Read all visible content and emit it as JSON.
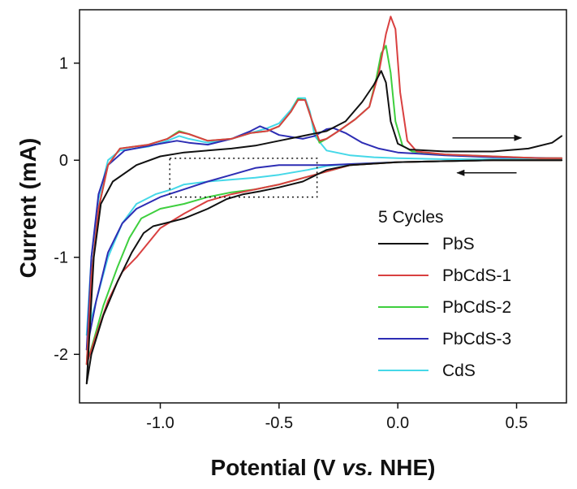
{
  "chart_data": {
    "type": "line",
    "title": "",
    "xlabel": {
      "prefix": "Potential (V ",
      "italic": "vs.",
      "suffix": " NHE)"
    },
    "ylabel": "Current (mA)",
    "xlim": [
      -1.34,
      0.71
    ],
    "ylim": [
      -2.5,
      1.55
    ],
    "xticks": [
      {
        "value": -1.0,
        "label": "-1.0"
      },
      {
        "value": -0.5,
        "label": "-0.5"
      },
      {
        "value": 0.0,
        "label": "0.0"
      },
      {
        "value": 0.5,
        "label": "0.5"
      }
    ],
    "yticks": [
      {
        "value": -2,
        "label": "-2"
      },
      {
        "value": -1,
        "label": "-1"
      },
      {
        "value": 0,
        "label": "0"
      },
      {
        "value": 1,
        "label": "1"
      }
    ],
    "grid": false,
    "legend": {
      "title": "5 Cycles",
      "position": "bottom-right"
    },
    "annotations": [
      {
        "type": "arrow",
        "direction": "right",
        "from": [
          0.23,
          0.23
        ],
        "to": [
          0.52,
          0.23
        ]
      },
      {
        "type": "arrow",
        "direction": "left",
        "from": [
          0.5,
          -0.13
        ],
        "to": [
          0.25,
          -0.13
        ]
      },
      {
        "type": "dashed-box",
        "x": [
          -0.96,
          -0.34
        ],
        "y": [
          -0.38,
          0.02
        ]
      }
    ],
    "series": [
      {
        "name": "PbS",
        "color": "#111111",
        "forward": [
          [
            -1.31,
            -2.3
          ],
          [
            -1.28,
            -1.0
          ],
          [
            -1.25,
            -0.45
          ],
          [
            -1.2,
            -0.22
          ],
          [
            -1.1,
            -0.05
          ],
          [
            -1.0,
            0.04
          ],
          [
            -0.9,
            0.08
          ],
          [
            -0.8,
            0.1
          ],
          [
            -0.7,
            0.12
          ],
          [
            -0.6,
            0.15
          ],
          [
            -0.5,
            0.2
          ],
          [
            -0.4,
            0.25
          ],
          [
            -0.3,
            0.3
          ],
          [
            -0.22,
            0.4
          ],
          [
            -0.15,
            0.6
          ],
          [
            -0.1,
            0.78
          ],
          [
            -0.07,
            0.92
          ],
          [
            -0.05,
            0.8
          ],
          [
            -0.03,
            0.4
          ],
          [
            0.0,
            0.17
          ],
          [
            0.05,
            0.11
          ],
          [
            0.2,
            0.09
          ],
          [
            0.4,
            0.09
          ],
          [
            0.55,
            0.12
          ],
          [
            0.65,
            0.18
          ],
          [
            0.69,
            0.25
          ]
        ],
        "reverse": [
          [
            0.69,
            0.0
          ],
          [
            0.4,
            0.0
          ],
          [
            0.2,
            -0.01
          ],
          [
            0.0,
            -0.02
          ],
          [
            -0.2,
            -0.05
          ],
          [
            -0.3,
            -0.1
          ],
          [
            -0.4,
            -0.22
          ],
          [
            -0.5,
            -0.28
          ],
          [
            -0.58,
            -0.32
          ],
          [
            -0.65,
            -0.35
          ],
          [
            -0.72,
            -0.4
          ],
          [
            -0.8,
            -0.5
          ],
          [
            -0.9,
            -0.6
          ],
          [
            -0.98,
            -0.65
          ],
          [
            -1.03,
            -0.68
          ],
          [
            -1.07,
            -0.75
          ],
          [
            -1.12,
            -0.95
          ],
          [
            -1.18,
            -1.25
          ],
          [
            -1.24,
            -1.6
          ],
          [
            -1.29,
            -2.0
          ],
          [
            -1.31,
            -2.3
          ]
        ]
      },
      {
        "name": "PbCdS-1",
        "color": "#d94040",
        "forward": [
          [
            -1.31,
            -2.1
          ],
          [
            -1.29,
            -1.2
          ],
          [
            -1.26,
            -0.5
          ],
          [
            -1.22,
            -0.05
          ],
          [
            -1.17,
            0.12
          ],
          [
            -1.05,
            0.16
          ],
          [
            -0.97,
            0.22
          ],
          [
            -0.92,
            0.29
          ],
          [
            -0.88,
            0.27
          ],
          [
            -0.8,
            0.2
          ],
          [
            -0.7,
            0.22
          ],
          [
            -0.62,
            0.28
          ],
          [
            -0.55,
            0.3
          ],
          [
            -0.5,
            0.35
          ],
          [
            -0.45,
            0.5
          ],
          [
            -0.42,
            0.62
          ],
          [
            -0.39,
            0.62
          ],
          [
            -0.36,
            0.4
          ],
          [
            -0.33,
            0.2
          ],
          [
            -0.3,
            0.22
          ],
          [
            -0.25,
            0.3
          ],
          [
            -0.18,
            0.42
          ],
          [
            -0.12,
            0.55
          ],
          [
            -0.08,
            0.9
          ],
          [
            -0.05,
            1.3
          ],
          [
            -0.03,
            1.48
          ],
          [
            -0.01,
            1.35
          ],
          [
            0.01,
            0.7
          ],
          [
            0.04,
            0.2
          ],
          [
            0.08,
            0.09
          ],
          [
            0.2,
            0.06
          ],
          [
            0.4,
            0.04
          ],
          [
            0.6,
            0.02
          ],
          [
            0.69,
            0.02
          ]
        ],
        "reverse": [
          [
            0.69,
            0.0
          ],
          [
            0.4,
            0.0
          ],
          [
            0.2,
            -0.01
          ],
          [
            0.0,
            -0.02
          ],
          [
            -0.2,
            -0.05
          ],
          [
            -0.35,
            -0.15
          ],
          [
            -0.5,
            -0.25
          ],
          [
            -0.6,
            -0.3
          ],
          [
            -0.7,
            -0.35
          ],
          [
            -0.8,
            -0.42
          ],
          [
            -0.9,
            -0.55
          ],
          [
            -1.0,
            -0.7
          ],
          [
            -1.05,
            -0.85
          ],
          [
            -1.1,
            -1.0
          ],
          [
            -1.16,
            -1.15
          ],
          [
            -1.22,
            -1.45
          ],
          [
            -1.27,
            -1.8
          ],
          [
            -1.31,
            -2.1
          ]
        ]
      },
      {
        "name": "PbCdS-2",
        "color": "#3ecf3e",
        "forward": [
          [
            -1.31,
            -2.1
          ],
          [
            -1.29,
            -1.2
          ],
          [
            -1.26,
            -0.5
          ],
          [
            -1.22,
            -0.05
          ],
          [
            -1.17,
            0.12
          ],
          [
            -1.05,
            0.16
          ],
          [
            -0.97,
            0.22
          ],
          [
            -0.92,
            0.3
          ],
          [
            -0.88,
            0.27
          ],
          [
            -0.8,
            0.2
          ],
          [
            -0.7,
            0.22
          ],
          [
            -0.62,
            0.28
          ],
          [
            -0.55,
            0.3
          ],
          [
            -0.5,
            0.35
          ],
          [
            -0.45,
            0.5
          ],
          [
            -0.42,
            0.63
          ],
          [
            -0.39,
            0.62
          ],
          [
            -0.36,
            0.4
          ],
          [
            -0.33,
            0.18
          ],
          [
            -0.3,
            0.22
          ],
          [
            -0.25,
            0.3
          ],
          [
            -0.18,
            0.42
          ],
          [
            -0.12,
            0.55
          ],
          [
            -0.09,
            0.85
          ],
          [
            -0.07,
            1.1
          ],
          [
            -0.05,
            1.18
          ],
          [
            -0.03,
            0.9
          ],
          [
            -0.01,
            0.4
          ],
          [
            0.02,
            0.15
          ],
          [
            0.06,
            0.09
          ],
          [
            0.2,
            0.06
          ],
          [
            0.4,
            0.04
          ],
          [
            0.6,
            0.02
          ],
          [
            0.69,
            0.02
          ]
        ],
        "reverse": [
          [
            0.69,
            0.0
          ],
          [
            0.4,
            0.0
          ],
          [
            0.2,
            -0.01
          ],
          [
            0.0,
            -0.02
          ],
          [
            -0.2,
            -0.05
          ],
          [
            -0.35,
            -0.15
          ],
          [
            -0.5,
            -0.25
          ],
          [
            -0.6,
            -0.3
          ],
          [
            -0.7,
            -0.33
          ],
          [
            -0.8,
            -0.38
          ],
          [
            -0.9,
            -0.45
          ],
          [
            -1.0,
            -0.5
          ],
          [
            -1.08,
            -0.6
          ],
          [
            -1.13,
            -0.8
          ],
          [
            -1.18,
            -1.1
          ],
          [
            -1.24,
            -1.5
          ],
          [
            -1.28,
            -1.85
          ],
          [
            -1.31,
            -2.1
          ]
        ]
      },
      {
        "name": "PbCdS-3",
        "color": "#2d2db4",
        "forward": [
          [
            -1.31,
            -1.95
          ],
          [
            -1.29,
            -1.0
          ],
          [
            -1.26,
            -0.35
          ],
          [
            -1.22,
            -0.05
          ],
          [
            -1.15,
            0.1
          ],
          [
            -1.0,
            0.17
          ],
          [
            -0.93,
            0.2
          ],
          [
            -0.88,
            0.18
          ],
          [
            -0.8,
            0.16
          ],
          [
            -0.7,
            0.22
          ],
          [
            -0.62,
            0.3
          ],
          [
            -0.58,
            0.35
          ],
          [
            -0.55,
            0.32
          ],
          [
            -0.5,
            0.26
          ],
          [
            -0.4,
            0.22
          ],
          [
            -0.35,
            0.25
          ],
          [
            -0.3,
            0.32
          ],
          [
            -0.27,
            0.33
          ],
          [
            -0.22,
            0.28
          ],
          [
            -0.15,
            0.18
          ],
          [
            -0.08,
            0.12
          ],
          [
            0.0,
            0.08
          ],
          [
            0.2,
            0.05
          ],
          [
            0.4,
            0.03
          ],
          [
            0.69,
            0.02
          ]
        ],
        "reverse": [
          [
            0.69,
            0.0
          ],
          [
            0.4,
            0.0
          ],
          [
            0.2,
            -0.01
          ],
          [
            0.0,
            -0.02
          ],
          [
            -0.2,
            -0.04
          ],
          [
            -0.3,
            -0.05
          ],
          [
            -0.4,
            -0.05
          ],
          [
            -0.5,
            -0.05
          ],
          [
            -0.6,
            -0.08
          ],
          [
            -0.7,
            -0.15
          ],
          [
            -0.8,
            -0.22
          ],
          [
            -0.9,
            -0.3
          ],
          [
            -1.0,
            -0.38
          ],
          [
            -1.1,
            -0.5
          ],
          [
            -1.16,
            -0.65
          ],
          [
            -1.22,
            -0.95
          ],
          [
            -1.27,
            -1.45
          ],
          [
            -1.31,
            -1.95
          ]
        ]
      },
      {
        "name": "CdS",
        "color": "#45d8e8",
        "forward": [
          [
            -1.31,
            -1.8
          ],
          [
            -1.29,
            -1.0
          ],
          [
            -1.26,
            -0.4
          ],
          [
            -1.22,
            0.0
          ],
          [
            -1.17,
            0.1
          ],
          [
            -1.05,
            0.14
          ],
          [
            -0.97,
            0.2
          ],
          [
            -0.92,
            0.25
          ],
          [
            -0.88,
            0.22
          ],
          [
            -0.8,
            0.18
          ],
          [
            -0.7,
            0.22
          ],
          [
            -0.62,
            0.28
          ],
          [
            -0.55,
            0.33
          ],
          [
            -0.5,
            0.38
          ],
          [
            -0.45,
            0.52
          ],
          [
            -0.42,
            0.64
          ],
          [
            -0.39,
            0.64
          ],
          [
            -0.37,
            0.5
          ],
          [
            -0.35,
            0.25
          ],
          [
            -0.3,
            0.1
          ],
          [
            -0.2,
            0.05
          ],
          [
            -0.1,
            0.03
          ],
          [
            0.0,
            0.02
          ],
          [
            0.2,
            0.01
          ],
          [
            0.4,
            0.01
          ],
          [
            0.69,
            0.01
          ]
        ],
        "reverse": [
          [
            0.69,
            0.0
          ],
          [
            0.4,
            0.0
          ],
          [
            0.2,
            -0.01
          ],
          [
            0.0,
            -0.02
          ],
          [
            -0.2,
            -0.04
          ],
          [
            -0.3,
            -0.06
          ],
          [
            -0.38,
            -0.1
          ],
          [
            -0.5,
            -0.15
          ],
          [
            -0.6,
            -0.18
          ],
          [
            -0.7,
            -0.2
          ],
          [
            -0.8,
            -0.22
          ],
          [
            -0.9,
            -0.25
          ],
          [
            -0.95,
            -0.3
          ],
          [
            -1.02,
            -0.35
          ],
          [
            -1.1,
            -0.45
          ],
          [
            -1.16,
            -0.65
          ],
          [
            -1.22,
            -1.0
          ],
          [
            -1.27,
            -1.45
          ],
          [
            -1.31,
            -1.8
          ]
        ]
      }
    ]
  }
}
